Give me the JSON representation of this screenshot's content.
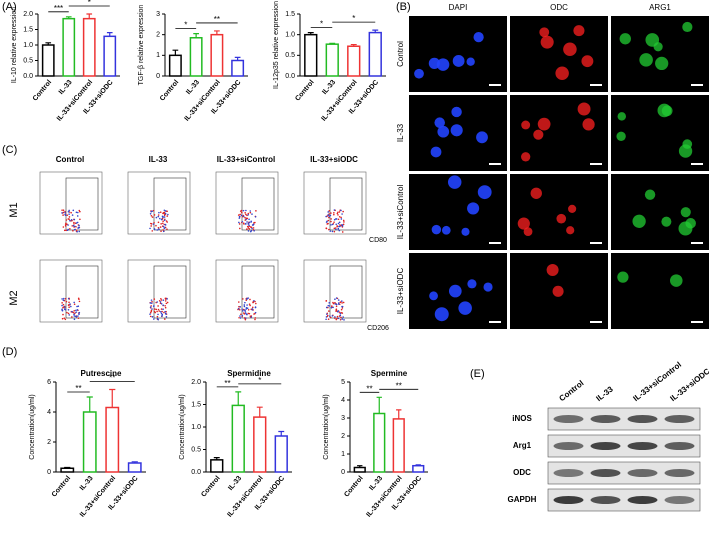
{
  "chart_data": [
    {
      "type": "bar",
      "ylabel": "IL-10 relative expression",
      "categories": [
        "Control",
        "IL-33",
        "IL-33+siControl",
        "IL-33+siODC"
      ],
      "values": [
        1.0,
        1.85,
        1.85,
        1.28
      ],
      "errors": [
        0.07,
        0.06,
        0.15,
        0.12
      ],
      "colors": [
        "#000000",
        "#22bb22",
        "#ee3333",
        "#3333dd"
      ],
      "ylim": [
        0,
        2.0
      ],
      "yticks": [
        {
          "value": 0,
          "label": "0.0"
        },
        0.5,
        {
          "value": 1,
          "label": "1.0"
        },
        1.5,
        {
          "value": 2,
          "label": "2.0"
        }
      ],
      "annotations": [
        {
          "text": "***",
          "from": "Control",
          "to": "IL-33"
        },
        {
          "text": "*",
          "from": "IL-33",
          "to": "IL-33+siODC"
        }
      ]
    },
    {
      "type": "bar",
      "ylabel": "TGF-β relative expression",
      "categories": [
        "Control",
        "IL-33",
        "IL-33+siControl",
        "IL-33+siODC"
      ],
      "values": [
        1.0,
        1.85,
        2.0,
        0.75
      ],
      "errors": [
        0.25,
        0.2,
        0.18,
        0.15
      ],
      "colors": [
        "#000000",
        "#22bb22",
        "#ee3333",
        "#3333dd"
      ],
      "ylim": [
        0,
        3
      ],
      "yticks": [
        0,
        1,
        2,
        3
      ],
      "annotations": [
        {
          "text": "*",
          "from": "Control",
          "to": "IL-33"
        },
        {
          "text": "**",
          "from": "IL-33",
          "to": "IL-33+siODC"
        }
      ]
    },
    {
      "type": "bar",
      "ylabel": "IL-12p35 relative expression",
      "categories": [
        "Control",
        "IL-33",
        "IL-33+siControl",
        "IL-33+siODC"
      ],
      "values": [
        1.0,
        0.77,
        0.72,
        1.05
      ],
      "errors": [
        0.05,
        0.02,
        0.04,
        0.06
      ],
      "colors": [
        "#000000",
        "#22bb22",
        "#ee3333",
        "#3333dd"
      ],
      "ylim": [
        0,
        1.5
      ],
      "yticks": [
        {
          "value": 0,
          "label": "0.0"
        },
        0.5,
        {
          "value": 1,
          "label": "1.0"
        },
        1.5
      ],
      "annotations": [
        {
          "text": "*",
          "from": "Control",
          "to": "IL-33"
        },
        {
          "text": "*",
          "from": "IL-33",
          "to": "IL-33+siODC"
        }
      ]
    },
    {
      "type": "bar",
      "title": "Putrescine",
      "ylabel": "Concentration(ug/ml)",
      "categories": [
        "Control",
        "IL-33",
        "IL-33+siControl",
        "IL-33+siODC"
      ],
      "values": [
        0.25,
        4.0,
        4.3,
        0.6
      ],
      "errors": [
        0.05,
        1.0,
        1.2,
        0.08
      ],
      "colors": [
        "#000000",
        "#22bb22",
        "#ee3333",
        "#3333dd"
      ],
      "ylim": [
        0,
        6
      ],
      "yticks": [
        0,
        2,
        4,
        6
      ],
      "annotations": [
        {
          "text": "**",
          "from": "Control",
          "to": "IL-33"
        },
        {
          "text": "**",
          "from": "IL-33",
          "to": "IL-33+siODC"
        }
      ]
    },
    {
      "type": "bar",
      "title": "Spermidine",
      "ylabel": "Concentration(ug/ml)",
      "categories": [
        "Control",
        "IL-33",
        "IL-33+siControl",
        "IL-33+siODC"
      ],
      "values": [
        0.27,
        1.48,
        1.22,
        0.8
      ],
      "errors": [
        0.05,
        0.3,
        0.22,
        0.1
      ],
      "colors": [
        "#000000",
        "#22bb22",
        "#ee3333",
        "#3333dd"
      ],
      "ylim": [
        0,
        2.0
      ],
      "yticks": [
        {
          "value": 0,
          "label": "0.0"
        },
        0.5,
        {
          "value": 1,
          "label": "1.0"
        },
        1.5,
        {
          "value": 2,
          "label": "2.0"
        }
      ],
      "annotations": [
        {
          "text": "**",
          "from": "Control",
          "to": "IL-33"
        },
        {
          "text": "*",
          "from": "IL-33",
          "to": "IL-33+siODC"
        }
      ]
    },
    {
      "type": "bar",
      "title": "Spermine",
      "ylabel": "Concentration(ug/ml)",
      "categories": [
        "Control",
        "IL-33",
        "IL-33+siControl",
        "IL-33+siODC"
      ],
      "values": [
        0.25,
        3.25,
        2.95,
        0.35
      ],
      "errors": [
        0.1,
        0.9,
        0.5,
        0.05
      ],
      "colors": [
        "#000000",
        "#22bb22",
        "#ee3333",
        "#3333dd"
      ],
      "ylim": [
        0,
        5
      ],
      "yticks": [
        0,
        1,
        2,
        3,
        4,
        5
      ],
      "annotations": [
        {
          "text": "**",
          "from": "Control",
          "to": "IL-33"
        },
        {
          "text": "**",
          "from": "IL-33",
          "to": "IL-33+siODC"
        }
      ]
    }
  ],
  "panel_labels": [
    "(A)",
    "(B)",
    "(C)",
    "(D)",
    "(E)"
  ],
  "microscopy": {
    "columns": [
      "DAPI",
      "ODC",
      "ARG1"
    ],
    "rows": [
      "Control",
      "IL-33",
      "IL-33+siControl",
      "IL-33+siODC"
    ]
  },
  "flow": {
    "columns": [
      "Control",
      "IL-33",
      "IL-33+siControl",
      "IL-33+siODC"
    ],
    "rows": [
      "M1",
      "M2"
    ],
    "markers": [
      "CD80",
      "CD206"
    ]
  },
  "western": {
    "lanes": [
      "Control",
      "IL-33",
      "IL-33+siControl",
      "IL-33+siODC"
    ],
    "proteins": [
      "iNOS",
      "Arg1",
      "ODC",
      "GAPDH"
    ]
  }
}
